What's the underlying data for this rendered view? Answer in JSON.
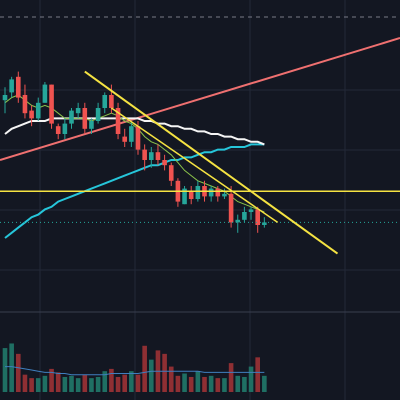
{
  "theme": {
    "background": "#131722",
    "grid": "#232838",
    "up": "#26a69a",
    "down": "#ef5350",
    "ma_short": "#8bc34a",
    "ma_mid": "#f5f5f5",
    "ma_teal": "#26c6da",
    "ma_long": "#ef7070",
    "trendline": "#f5e342",
    "hline": "#f5e342",
    "dashed_top": "#787b86",
    "last_price": "#26a69a"
  },
  "chart_data": {
    "type": "candlestick",
    "title": "",
    "xlabel": "",
    "ylabel": "",
    "grid": true,
    "legend": "none",
    "ylim": [
      0,
      100
    ],
    "candles": [
      {
        "o": 73,
        "h": 78,
        "l": 68,
        "c": 75
      },
      {
        "o": 76,
        "h": 82,
        "l": 74,
        "c": 81
      },
      {
        "o": 82,
        "h": 84,
        "l": 72,
        "c": 74
      },
      {
        "o": 75,
        "h": 79,
        "l": 66,
        "c": 68
      },
      {
        "o": 69,
        "h": 71,
        "l": 63,
        "c": 66
      },
      {
        "o": 66,
        "h": 74,
        "l": 65,
        "c": 72
      },
      {
        "o": 72,
        "h": 80,
        "l": 72,
        "c": 79
      },
      {
        "o": 79,
        "h": 79,
        "l": 62,
        "c": 64
      },
      {
        "o": 63,
        "h": 64,
        "l": 58,
        "c": 60
      },
      {
        "o": 60,
        "h": 66,
        "l": 58,
        "c": 64
      },
      {
        "o": 64,
        "h": 70,
        "l": 62,
        "c": 69
      },
      {
        "o": 68,
        "h": 72,
        "l": 66,
        "c": 70
      },
      {
        "o": 70,
        "h": 72,
        "l": 60,
        "c": 62
      },
      {
        "o": 62,
        "h": 66,
        "l": 60,
        "c": 65
      },
      {
        "o": 65,
        "h": 72,
        "l": 64,
        "c": 70
      },
      {
        "o": 70,
        "h": 76,
        "l": 68,
        "c": 75
      },
      {
        "o": 75,
        "h": 79,
        "l": 68,
        "c": 70
      },
      {
        "o": 70,
        "h": 72,
        "l": 58,
        "c": 60
      },
      {
        "o": 59,
        "h": 62,
        "l": 55,
        "c": 57
      },
      {
        "o": 57,
        "h": 65,
        "l": 55,
        "c": 63
      },
      {
        "o": 63,
        "h": 65,
        "l": 52,
        "c": 54
      },
      {
        "o": 54,
        "h": 56,
        "l": 46,
        "c": 50
      },
      {
        "o": 50,
        "h": 55,
        "l": 47,
        "c": 53
      },
      {
        "o": 53,
        "h": 56,
        "l": 48,
        "c": 50
      },
      {
        "o": 50,
        "h": 52,
        "l": 46,
        "c": 48
      },
      {
        "o": 48,
        "h": 49,
        "l": 40,
        "c": 42
      },
      {
        "o": 42,
        "h": 43,
        "l": 32,
        "c": 34
      },
      {
        "o": 33,
        "h": 40,
        "l": 33,
        "c": 39
      },
      {
        "o": 38,
        "h": 40,
        "l": 33,
        "c": 35
      },
      {
        "o": 35,
        "h": 42,
        "l": 34,
        "c": 40
      },
      {
        "o": 40,
        "h": 42,
        "l": 34,
        "c": 36
      },
      {
        "o": 36,
        "h": 40,
        "l": 34,
        "c": 39
      },
      {
        "o": 39,
        "h": 40,
        "l": 34,
        "c": 36
      },
      {
        "o": 36,
        "h": 39,
        "l": 35,
        "c": 37
      },
      {
        "o": 37,
        "h": 40,
        "l": 24,
        "c": 26
      },
      {
        "o": 26,
        "h": 29,
        "l": 22,
        "c": 27
      },
      {
        "o": 27,
        "h": 32,
        "l": 26,
        "c": 30
      },
      {
        "o": 30,
        "h": 32,
        "l": 27,
        "c": 31
      },
      {
        "o": 31,
        "h": 32,
        "l": 22,
        "c": 25
      },
      {
        "o": 25,
        "h": 28,
        "l": 24,
        "c": 26
      }
    ],
    "volume": [
      38,
      42,
      33,
      15,
      12,
      12,
      14,
      20,
      17,
      13,
      14,
      12,
      15,
      12,
      13,
      18,
      20,
      13,
      15,
      18,
      15,
      40,
      28,
      36,
      33,
      22,
      14,
      16,
      13,
      18,
      13,
      14,
      12,
      12,
      25,
      14,
      13,
      22,
      30,
      14
    ],
    "volume_ma": [
      22,
      22,
      21,
      20,
      19,
      18,
      17,
      17,
      16,
      16,
      15,
      15,
      15,
      15,
      15,
      15,
      16,
      16,
      16,
      16,
      16,
      17,
      18,
      18,
      18,
      18,
      18,
      18,
      18,
      18,
      17,
      17,
      17,
      17,
      17,
      17,
      17,
      17,
      17,
      17
    ],
    "ma_short": [
      72,
      74,
      75,
      73,
      71,
      70,
      71,
      70,
      68,
      66,
      66,
      66,
      66,
      65,
      66,
      67,
      68,
      67,
      65,
      64,
      62,
      59,
      57,
      56,
      54,
      52,
      49,
      46,
      44,
      42,
      41,
      40,
      39,
      38,
      36,
      34,
      33,
      32,
      31,
      30
    ],
    "ma_mid": [
      60,
      62,
      63,
      64,
      65,
      65,
      65,
      66,
      66,
      66,
      66,
      66,
      66,
      66,
      66,
      66,
      66,
      66,
      66,
      66,
      66,
      65,
      65,
      64,
      64,
      63,
      63,
      62,
      62,
      61,
      61,
      60,
      60,
      59,
      59,
      58,
      58,
      57,
      57,
      56
    ],
    "ma_teal": [
      20,
      22,
      24,
      26,
      28,
      29,
      31,
      32,
      34,
      35,
      36,
      37,
      38,
      39,
      40,
      41,
      42,
      43,
      44,
      45,
      46,
      47,
      48,
      48,
      49,
      50,
      50,
      51,
      51,
      52,
      53,
      53,
      54,
      54,
      55,
      55,
      55,
      56,
      56,
      56
    ],
    "ma_long": [
      50,
      51,
      52,
      53,
      54,
      54,
      55,
      56,
      57,
      57,
      58,
      59,
      60,
      60,
      61,
      62,
      63,
      63,
      64,
      65,
      66,
      67,
      67,
      68,
      69,
      70,
      70,
      71,
      72,
      73,
      73,
      74,
      75,
      76,
      77,
      77,
      78,
      79,
      80,
      81
    ],
    "trendline": {
      "from_index": 12,
      "from_value": 84,
      "to_index": 50,
      "to_value": 14
    },
    "trendline2": {
      "from_index": 16,
      "from_value": 70,
      "to_index": 41,
      "to_value": 26
    },
    "horizontal_level": 38,
    "last_price": 26
  }
}
